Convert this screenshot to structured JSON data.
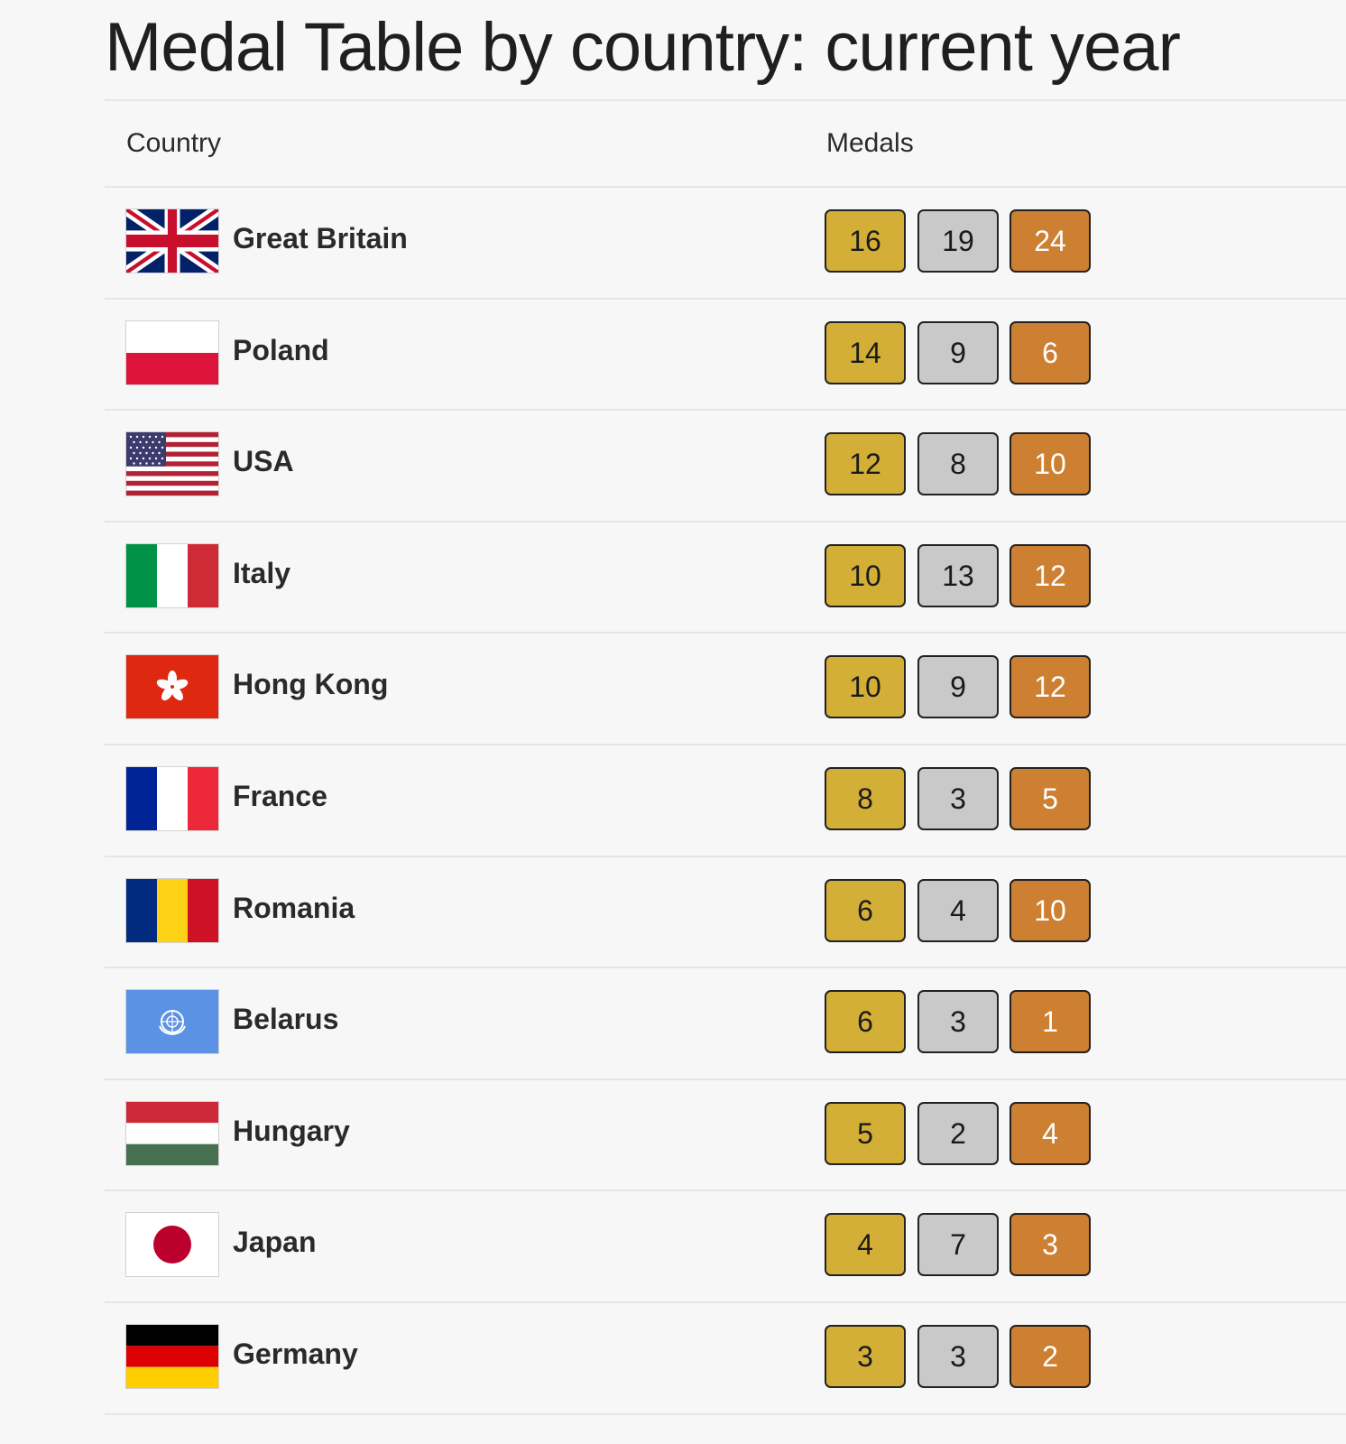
{
  "title": "Medal Table by country: current year",
  "headers": {
    "country": "Country",
    "medals": "Medals"
  },
  "colors": {
    "gold": "#d4af37",
    "silver": "#c9c9c9",
    "bronze": "#cd7f32"
  },
  "rows": [
    {
      "country": "Great Britain",
      "flag": "uk-flag-icon",
      "gold": "16",
      "silver": "19",
      "bronze": "24"
    },
    {
      "country": "Poland",
      "flag": "poland-flag-icon",
      "gold": "14",
      "silver": "9",
      "bronze": "6"
    },
    {
      "country": "USA",
      "flag": "usa-flag-icon",
      "gold": "12",
      "silver": "8",
      "bronze": "10"
    },
    {
      "country": "Italy",
      "flag": "italy-flag-icon",
      "gold": "10",
      "silver": "13",
      "bronze": "12"
    },
    {
      "country": "Hong Kong",
      "flag": "hong-kong-flag-icon",
      "gold": "10",
      "silver": "9",
      "bronze": "12"
    },
    {
      "country": "France",
      "flag": "france-flag-icon",
      "gold": "8",
      "silver": "3",
      "bronze": "5"
    },
    {
      "country": "Romania",
      "flag": "romania-flag-icon",
      "gold": "6",
      "silver": "4",
      "bronze": "10"
    },
    {
      "country": "Belarus",
      "flag": "un-flag-icon",
      "gold": "6",
      "silver": "3",
      "bronze": "1"
    },
    {
      "country": "Hungary",
      "flag": "hungary-flag-icon",
      "gold": "5",
      "silver": "2",
      "bronze": "4"
    },
    {
      "country": "Japan",
      "flag": "japan-flag-icon",
      "gold": "4",
      "silver": "7",
      "bronze": "3"
    },
    {
      "country": "Germany",
      "flag": "germany-flag-icon",
      "gold": "3",
      "silver": "3",
      "bronze": "2"
    }
  ]
}
